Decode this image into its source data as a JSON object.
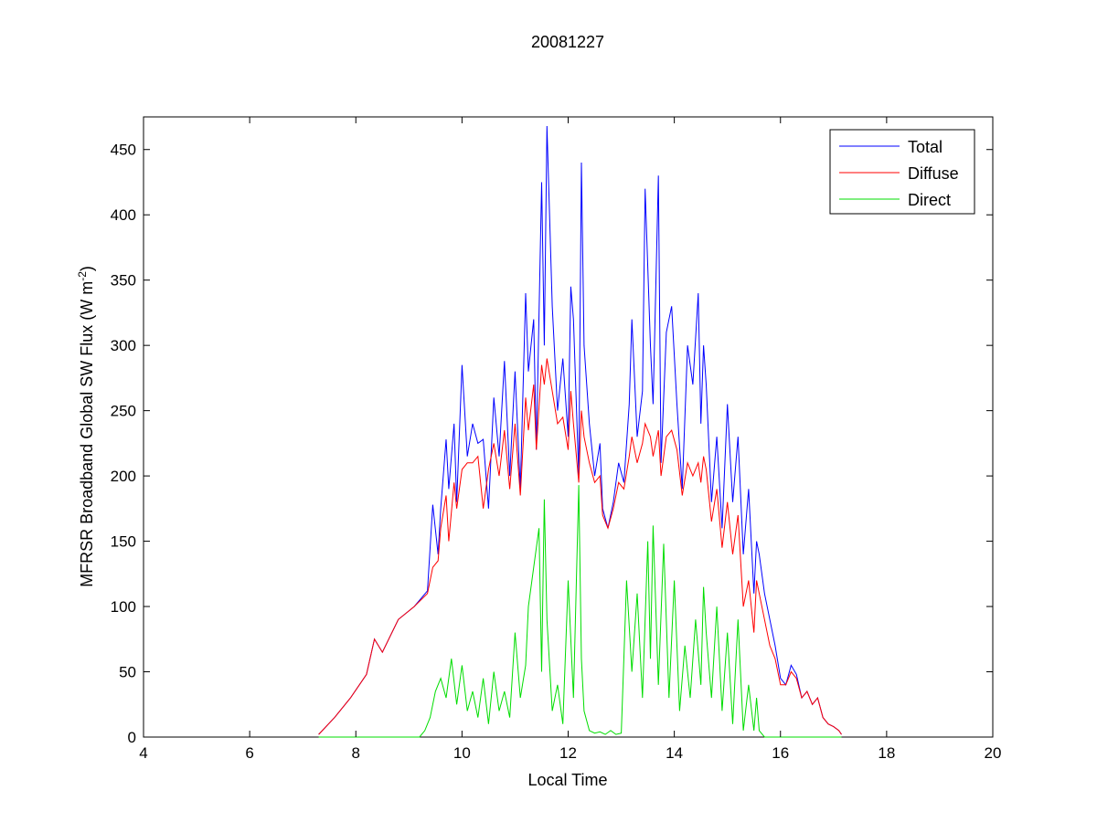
{
  "chart_data": {
    "type": "line",
    "title": "20081227",
    "xlabel": "Local Time",
    "ylabel_main": "MFRSR Broadband Global SW Flux (W m",
    "ylabel_sup": "-2",
    "ylabel_end": ")",
    "xlim": [
      4,
      20
    ],
    "ylim": [
      0,
      475
    ],
    "xticks": [
      4,
      6,
      8,
      10,
      12,
      14,
      16,
      18,
      20
    ],
    "yticks": [
      0,
      50,
      100,
      150,
      200,
      250,
      300,
      350,
      400,
      450
    ],
    "grid": false,
    "legend_position": "top-right",
    "series": [
      {
        "name": "Total",
        "color": "#0000ff",
        "x": [
          7.3,
          7.6,
          7.9,
          8.2,
          8.35,
          8.5,
          8.8,
          9.1,
          9.35,
          9.45,
          9.55,
          9.6,
          9.7,
          9.75,
          9.85,
          9.9,
          10.0,
          10.1,
          10.2,
          10.3,
          10.4,
          10.5,
          10.6,
          10.7,
          10.8,
          10.9,
          11.0,
          11.1,
          11.2,
          11.25,
          11.35,
          11.4,
          11.5,
          11.55,
          11.6,
          11.7,
          11.8,
          11.9,
          12.0,
          12.05,
          12.1,
          12.2,
          12.25,
          12.3,
          12.4,
          12.5,
          12.6,
          12.65,
          12.75,
          12.85,
          12.95,
          13.05,
          13.15,
          13.2,
          13.3,
          13.4,
          13.45,
          13.55,
          13.6,
          13.7,
          13.75,
          13.85,
          13.95,
          14.05,
          14.15,
          14.25,
          14.35,
          14.45,
          14.5,
          14.55,
          14.6,
          14.7,
          14.8,
          14.9,
          15.0,
          15.1,
          15.2,
          15.3,
          15.4,
          15.5,
          15.55,
          15.6,
          15.7,
          15.8,
          15.9,
          16.0,
          16.1,
          16.2,
          16.3,
          16.4,
          16.5,
          16.6,
          16.7,
          16.8,
          16.9,
          17.0,
          17.1,
          17.15
        ],
        "y": [
          2,
          15,
          30,
          48,
          75,
          65,
          90,
          100,
          112,
          178,
          140,
          175,
          228,
          190,
          240,
          180,
          285,
          215,
          240,
          225,
          228,
          175,
          260,
          215,
          288,
          200,
          280,
          190,
          340,
          280,
          320,
          220,
          425,
          300,
          468,
          330,
          250,
          290,
          230,
          345,
          320,
          200,
          440,
          300,
          240,
          200,
          225,
          175,
          160,
          180,
          210,
          195,
          255,
          320,
          230,
          265,
          420,
          300,
          255,
          430,
          210,
          310,
          330,
          255,
          190,
          300,
          270,
          340,
          240,
          300,
          270,
          180,
          230,
          160,
          255,
          180,
          230,
          140,
          190,
          110,
          150,
          140,
          110,
          90,
          70,
          45,
          40,
          55,
          48,
          30,
          35,
          25,
          30,
          15,
          10,
          8,
          5,
          2
        ],
        "base": "Diffuse"
      },
      {
        "name": "Diffuse",
        "color": "#ff0000",
        "x": [
          7.3,
          7.6,
          7.9,
          8.2,
          8.35,
          8.5,
          8.8,
          9.1,
          9.35,
          9.45,
          9.55,
          9.6,
          9.7,
          9.75,
          9.85,
          9.9,
          10.0,
          10.1,
          10.2,
          10.3,
          10.4,
          10.5,
          10.6,
          10.7,
          10.8,
          10.9,
          11.0,
          11.1,
          11.2,
          11.25,
          11.35,
          11.4,
          11.5,
          11.55,
          11.6,
          11.7,
          11.8,
          11.9,
          12.0,
          12.05,
          12.1,
          12.2,
          12.25,
          12.3,
          12.4,
          12.5,
          12.6,
          12.65,
          12.75,
          12.85,
          12.95,
          13.05,
          13.15,
          13.2,
          13.3,
          13.4,
          13.45,
          13.55,
          13.6,
          13.7,
          13.75,
          13.85,
          13.95,
          14.05,
          14.15,
          14.25,
          14.35,
          14.45,
          14.5,
          14.55,
          14.6,
          14.7,
          14.8,
          14.9,
          15.0,
          15.1,
          15.2,
          15.3,
          15.4,
          15.5,
          15.55,
          15.6,
          15.7,
          15.8,
          15.9,
          16.0,
          16.1,
          16.2,
          16.3,
          16.4,
          16.5,
          16.6,
          16.7,
          16.8,
          16.9,
          17.0,
          17.1,
          17.15
        ],
        "y": [
          2,
          15,
          30,
          48,
          75,
          65,
          90,
          100,
          110,
          130,
          135,
          160,
          185,
          150,
          195,
          175,
          205,
          210,
          210,
          215,
          175,
          205,
          225,
          200,
          235,
          190,
          240,
          185,
          260,
          235,
          270,
          220,
          285,
          270,
          290,
          265,
          240,
          245,
          220,
          265,
          240,
          195,
          250,
          230,
          210,
          195,
          200,
          170,
          160,
          175,
          195,
          190,
          215,
          230,
          210,
          225,
          240,
          230,
          215,
          235,
          200,
          230,
          235,
          220,
          185,
          210,
          200,
          210,
          195,
          215,
          205,
          165,
          190,
          145,
          180,
          140,
          170,
          100,
          120,
          80,
          120,
          110,
          90,
          70,
          60,
          40,
          40,
          50,
          45,
          30,
          35,
          25,
          30,
          15,
          10,
          8,
          5,
          2
        ]
      },
      {
        "name": "Direct",
        "color": "#00dd00",
        "x": [
          7.3,
          8.0,
          8.8,
          9.2,
          9.3,
          9.4,
          9.5,
          9.6,
          9.7,
          9.8,
          9.9,
          10.0,
          10.1,
          10.2,
          10.3,
          10.4,
          10.5,
          10.6,
          10.7,
          10.8,
          10.9,
          11.0,
          11.1,
          11.2,
          11.25,
          11.35,
          11.45,
          11.5,
          11.55,
          11.6,
          11.7,
          11.8,
          11.9,
          12.0,
          12.1,
          12.2,
          12.25,
          12.3,
          12.4,
          12.5,
          12.6,
          12.7,
          12.8,
          12.9,
          13.0,
          13.1,
          13.2,
          13.3,
          13.4,
          13.5,
          13.55,
          13.6,
          13.7,
          13.8,
          13.9,
          14.0,
          14.1,
          14.2,
          14.3,
          14.4,
          14.5,
          14.55,
          14.6,
          14.7,
          14.8,
          14.9,
          15.0,
          15.1,
          15.2,
          15.3,
          15.4,
          15.5,
          15.55,
          15.6,
          15.7,
          16.0,
          17.0,
          17.15
        ],
        "y": [
          0,
          0,
          0,
          0,
          5,
          15,
          35,
          45,
          30,
          60,
          25,
          55,
          20,
          35,
          15,
          45,
          10,
          50,
          20,
          35,
          15,
          80,
          30,
          55,
          100,
          130,
          160,
          50,
          182,
          90,
          20,
          40,
          10,
          120,
          30,
          193,
          60,
          20,
          5,
          3,
          4,
          2,
          5,
          2,
          3,
          120,
          50,
          110,
          30,
          150,
          60,
          162,
          40,
          148,
          30,
          120,
          20,
          70,
          30,
          90,
          40,
          115,
          80,
          30,
          100,
          20,
          80,
          10,
          90,
          5,
          40,
          5,
          30,
          5,
          0,
          0,
          0,
          0
        ]
      }
    ]
  }
}
